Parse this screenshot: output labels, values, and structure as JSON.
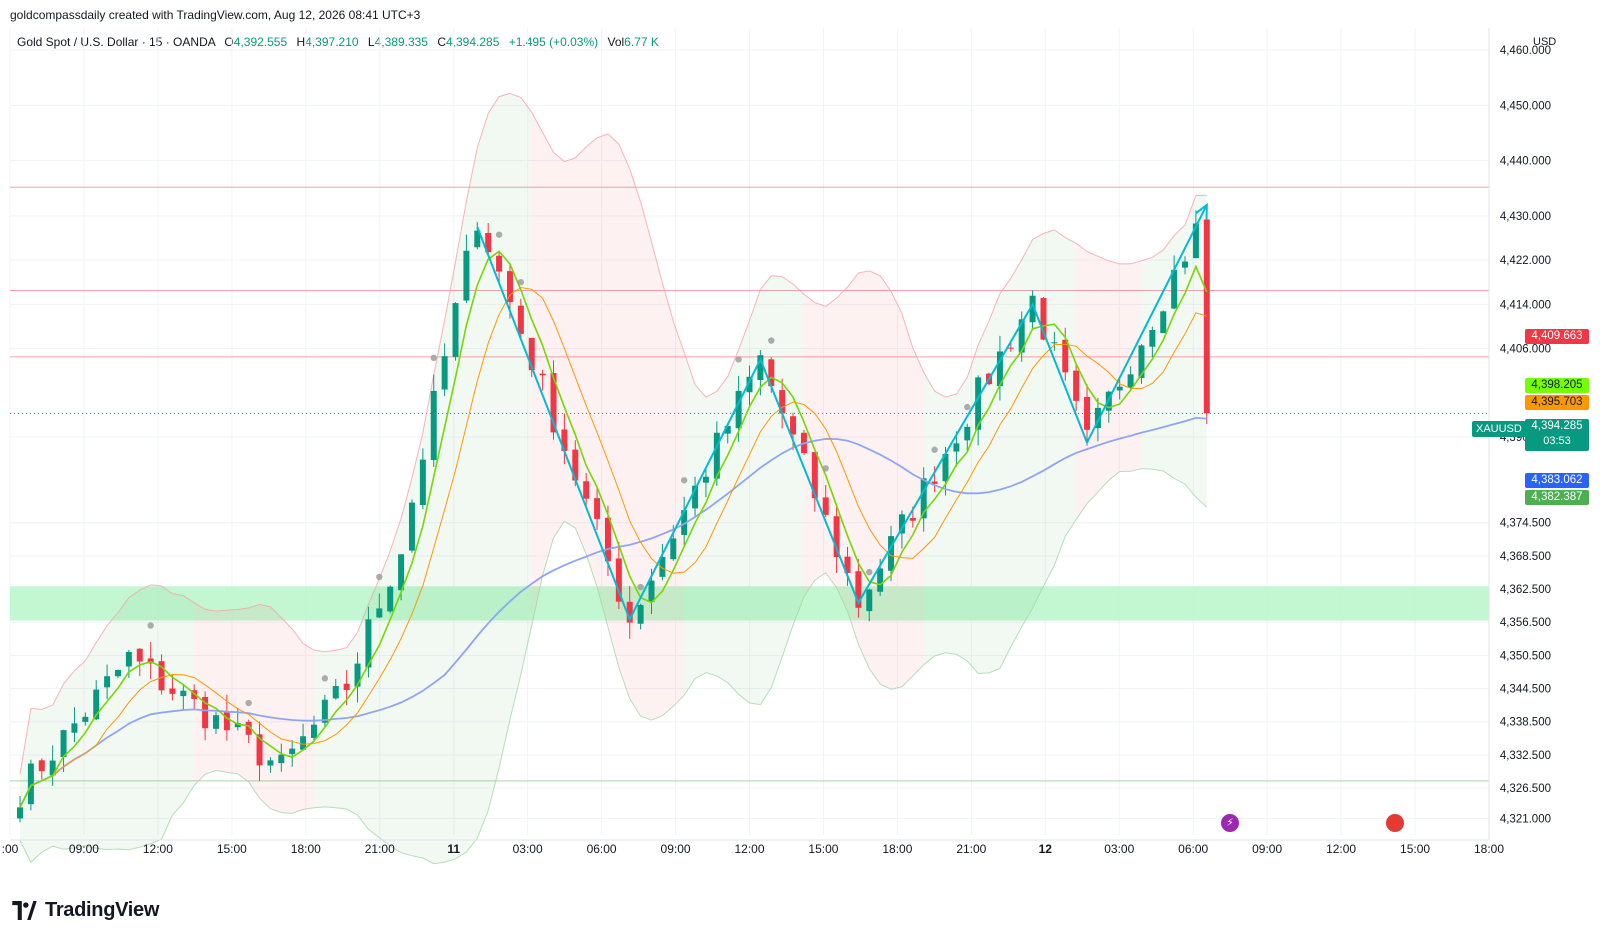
{
  "attribution": "goldcompassdaily created with TradingView.com, Aug 12, 2026 08:41 UTC+3",
  "legend": {
    "title": "Gold Spot / U.S. Dollar · 15 · OANDA",
    "open_label": "O",
    "open": "4,392.555",
    "high_label": "H",
    "high": "4,397.210",
    "low_label": "L",
    "low": "4,389.335",
    "close_label": "C",
    "close": "4,394.285",
    "change": "+1.495 (+0.03%)",
    "vol_label": "Vol",
    "vol": "6.77 K"
  },
  "axis": {
    "currency": "USD"
  },
  "price_labels": [
    {
      "value": "4,409.663",
      "color": "#f23645",
      "text_color": "#ffffff"
    },
    {
      "value": "4,398.205",
      "color": "#76ff03",
      "text_color": "#131722"
    },
    {
      "value": "4,395.703",
      "color": "#ff9800",
      "text_color": "#131722"
    },
    {
      "value": "4,383.062",
      "color": "#2962ff",
      "text_color": "#ffffff"
    },
    {
      "value": "4,382.387",
      "color": "#4caf50",
      "text_color": "#ffffff"
    }
  ],
  "last_price": {
    "symbol": "XAUUSD",
    "value": "4,394.285",
    "countdown": "03:53"
  },
  "logo": {
    "text": "TradingView"
  },
  "events": [
    {
      "icon": "lightning-icon",
      "color": "#9c27b0",
      "glyph": "⚡"
    },
    {
      "icon": "us-flag-icon",
      "color": "#e53935",
      "glyph": ""
    }
  ],
  "chart_data": {
    "type": "candlestick",
    "symbol": "XAUUSD",
    "interval": "15",
    "ylim": [
      4318,
      4464
    ],
    "y_ticks": [
      "4,460.000",
      "4,450.000",
      "4,440.000",
      "4,430.000",
      "4,422.000",
      "4,414.000",
      "4,406.000",
      "4,390.000",
      "4,374.500",
      "4,368.500",
      "4,362.500",
      "4,356.500",
      "4,350.500",
      "4,344.500",
      "4,338.500",
      "4,332.500",
      "4,326.500",
      "4,321.000"
    ],
    "y_tick_values": [
      4460,
      4450,
      4440,
      4430,
      4422,
      4414,
      4406,
      4390,
      4374.5,
      4368.5,
      4362.5,
      4356.5,
      4350.5,
      4344.5,
      4338.5,
      4332.5,
      4326.5,
      4321
    ],
    "x_ticks": [
      ":00",
      "09:00",
      "12:00",
      "15:00",
      "18:00",
      "21:00",
      "11",
      "03:00",
      "06:00",
      "09:00",
      "12:00",
      "15:00",
      "18:00",
      "21:00",
      "12",
      "03:00",
      "06:00",
      "09:00",
      "12:00",
      "15:00",
      "18:00"
    ],
    "bold_x_ticks": [
      "11",
      "12"
    ],
    "horizontal_levels": [
      {
        "price": 4435.2,
        "color": "#f7a1a8"
      },
      {
        "price": 4416.5,
        "color": "#f7a1a8"
      },
      {
        "price": 4404.5,
        "color": "#f7a1a8"
      },
      {
        "price": 4327.8,
        "color": "#a5d6a7"
      }
    ],
    "support_zone": [
      4356.8,
      4363.0
    ],
    "current_price": 4394.285,
    "anchor_points": [
      {
        "time": 42,
        "price": 4430
      },
      {
        "time": 56,
        "price": 4357
      },
      {
        "time": 68,
        "price": 4404
      },
      {
        "time": 77,
        "price": 4360
      },
      {
        "time": 93,
        "price": 4415
      },
      {
        "time": 98,
        "price": 4389
      },
      {
        "time": 109,
        "price": 4431
      }
    ],
    "future_bars": 24,
    "seed": 7,
    "pattern_lines": [
      {
        "points": [
          [
            42,
            4428
          ],
          [
            56,
            4357
          ],
          [
            68,
            4404
          ],
          [
            77,
            4360
          ],
          [
            93,
            4414
          ],
          [
            98,
            4389
          ],
          [
            109,
            4432
          ]
        ],
        "color": "#00bcd4"
      }
    ]
  }
}
